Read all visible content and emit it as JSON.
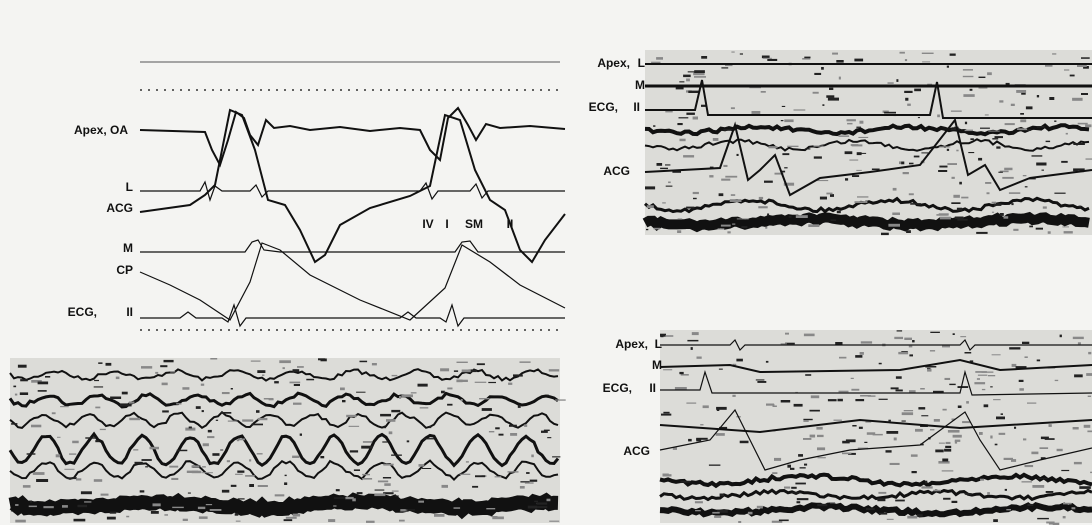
{
  "panels": [
    {
      "labels": [
        "Apex, OA",
        "L",
        "ACG",
        "M",
        "CP",
        "ECG,",
        "II"
      ],
      "markers": [
        "IV",
        "I",
        "SM",
        "II"
      ]
    },
    {
      "labels": [
        "Apex,",
        "L",
        "M",
        "ECG,",
        "II",
        "ACG"
      ]
    },
    {
      "labels": [
        "Apex,",
        "L",
        "M",
        "ECG,",
        "II",
        "ACG"
      ]
    }
  ]
}
